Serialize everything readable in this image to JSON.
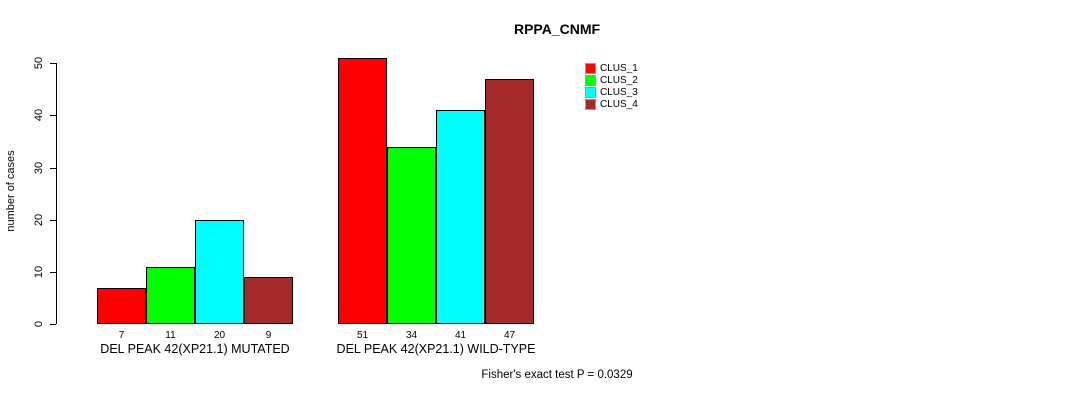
{
  "title": "RPPA_CNMF",
  "footer": "Fisher's exact test P = 0.0329",
  "y_axis": {
    "label": "number of cases",
    "ticks": [
      0,
      10,
      20,
      30,
      40,
      50
    ]
  },
  "legend": {
    "position": "top-right-outside",
    "entries": [
      {
        "label": "CLUS_1",
        "color": "#FF0000"
      },
      {
        "label": "CLUS_2",
        "color": "#00FF00"
      },
      {
        "label": "CLUS_3",
        "color": "#00FFFF"
      },
      {
        "label": "CLUS_4",
        "color": "#A52A2A"
      }
    ]
  },
  "chart_data": {
    "type": "bar",
    "title": "RPPA_CNMF",
    "xlabel": "",
    "ylabel": "number of cases",
    "ylim": [
      0,
      51
    ],
    "yticks": [
      0,
      10,
      20,
      30,
      40,
      50
    ],
    "grid": false,
    "categories": [
      "DEL PEAK 42(XP21.1) MUTATED",
      "DEL PEAK 42(XP21.1) WILD-TYPE"
    ],
    "series": [
      {
        "name": "CLUS_1",
        "color": "#FF0000",
        "values": [
          7,
          51
        ]
      },
      {
        "name": "CLUS_2",
        "color": "#00FF00",
        "values": [
          11,
          34
        ]
      },
      {
        "name": "CLUS_3",
        "color": "#00FFFF",
        "values": [
          20,
          41
        ]
      },
      {
        "name": "CLUS_4",
        "color": "#A52A2A",
        "values": [
          9,
          47
        ]
      }
    ],
    "bar_value_labels": {
      "DEL PEAK 42(XP21.1) MUTATED": [
        7,
        11,
        20,
        9
      ],
      "DEL PEAK 42(XP21.1) WILD-TYPE": [
        51,
        34,
        41,
        47
      ]
    },
    "annotation": "Fisher's exact test P = 0.0329",
    "legend_entries": [
      "CLUS_1",
      "CLUS_2",
      "CLUS_3",
      "CLUS_4"
    ]
  }
}
